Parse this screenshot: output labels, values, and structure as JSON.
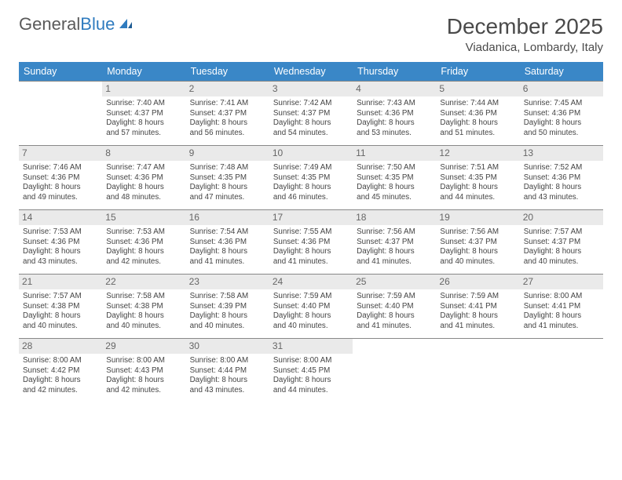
{
  "logo": {
    "text1": "General",
    "text2": "Blue",
    "accent_color": "#2f7bbf"
  },
  "header": {
    "month_title": "December 2025",
    "location": "Viadanica, Lombardy, Italy"
  },
  "colors": {
    "header_bg": "#3a87c7",
    "daynum_bg": "#eaeaea",
    "row_border": "#888888"
  },
  "day_names": [
    "Sunday",
    "Monday",
    "Tuesday",
    "Wednesday",
    "Thursday",
    "Friday",
    "Saturday"
  ],
  "weeks": [
    [
      {
        "n": "",
        "lines": []
      },
      {
        "n": "1",
        "lines": [
          "Sunrise: 7:40 AM",
          "Sunset: 4:37 PM",
          "Daylight: 8 hours",
          "and 57 minutes."
        ]
      },
      {
        "n": "2",
        "lines": [
          "Sunrise: 7:41 AM",
          "Sunset: 4:37 PM",
          "Daylight: 8 hours",
          "and 56 minutes."
        ]
      },
      {
        "n": "3",
        "lines": [
          "Sunrise: 7:42 AM",
          "Sunset: 4:37 PM",
          "Daylight: 8 hours",
          "and 54 minutes."
        ]
      },
      {
        "n": "4",
        "lines": [
          "Sunrise: 7:43 AM",
          "Sunset: 4:36 PM",
          "Daylight: 8 hours",
          "and 53 minutes."
        ]
      },
      {
        "n": "5",
        "lines": [
          "Sunrise: 7:44 AM",
          "Sunset: 4:36 PM",
          "Daylight: 8 hours",
          "and 51 minutes."
        ]
      },
      {
        "n": "6",
        "lines": [
          "Sunrise: 7:45 AM",
          "Sunset: 4:36 PM",
          "Daylight: 8 hours",
          "and 50 minutes."
        ]
      }
    ],
    [
      {
        "n": "7",
        "lines": [
          "Sunrise: 7:46 AM",
          "Sunset: 4:36 PM",
          "Daylight: 8 hours",
          "and 49 minutes."
        ]
      },
      {
        "n": "8",
        "lines": [
          "Sunrise: 7:47 AM",
          "Sunset: 4:36 PM",
          "Daylight: 8 hours",
          "and 48 minutes."
        ]
      },
      {
        "n": "9",
        "lines": [
          "Sunrise: 7:48 AM",
          "Sunset: 4:35 PM",
          "Daylight: 8 hours",
          "and 47 minutes."
        ]
      },
      {
        "n": "10",
        "lines": [
          "Sunrise: 7:49 AM",
          "Sunset: 4:35 PM",
          "Daylight: 8 hours",
          "and 46 minutes."
        ]
      },
      {
        "n": "11",
        "lines": [
          "Sunrise: 7:50 AM",
          "Sunset: 4:35 PM",
          "Daylight: 8 hours",
          "and 45 minutes."
        ]
      },
      {
        "n": "12",
        "lines": [
          "Sunrise: 7:51 AM",
          "Sunset: 4:35 PM",
          "Daylight: 8 hours",
          "and 44 minutes."
        ]
      },
      {
        "n": "13",
        "lines": [
          "Sunrise: 7:52 AM",
          "Sunset: 4:36 PM",
          "Daylight: 8 hours",
          "and 43 minutes."
        ]
      }
    ],
    [
      {
        "n": "14",
        "lines": [
          "Sunrise: 7:53 AM",
          "Sunset: 4:36 PM",
          "Daylight: 8 hours",
          "and 43 minutes."
        ]
      },
      {
        "n": "15",
        "lines": [
          "Sunrise: 7:53 AM",
          "Sunset: 4:36 PM",
          "Daylight: 8 hours",
          "and 42 minutes."
        ]
      },
      {
        "n": "16",
        "lines": [
          "Sunrise: 7:54 AM",
          "Sunset: 4:36 PM",
          "Daylight: 8 hours",
          "and 41 minutes."
        ]
      },
      {
        "n": "17",
        "lines": [
          "Sunrise: 7:55 AM",
          "Sunset: 4:36 PM",
          "Daylight: 8 hours",
          "and 41 minutes."
        ]
      },
      {
        "n": "18",
        "lines": [
          "Sunrise: 7:56 AM",
          "Sunset: 4:37 PM",
          "Daylight: 8 hours",
          "and 41 minutes."
        ]
      },
      {
        "n": "19",
        "lines": [
          "Sunrise: 7:56 AM",
          "Sunset: 4:37 PM",
          "Daylight: 8 hours",
          "and 40 minutes."
        ]
      },
      {
        "n": "20",
        "lines": [
          "Sunrise: 7:57 AM",
          "Sunset: 4:37 PM",
          "Daylight: 8 hours",
          "and 40 minutes."
        ]
      }
    ],
    [
      {
        "n": "21",
        "lines": [
          "Sunrise: 7:57 AM",
          "Sunset: 4:38 PM",
          "Daylight: 8 hours",
          "and 40 minutes."
        ]
      },
      {
        "n": "22",
        "lines": [
          "Sunrise: 7:58 AM",
          "Sunset: 4:38 PM",
          "Daylight: 8 hours",
          "and 40 minutes."
        ]
      },
      {
        "n": "23",
        "lines": [
          "Sunrise: 7:58 AM",
          "Sunset: 4:39 PM",
          "Daylight: 8 hours",
          "and 40 minutes."
        ]
      },
      {
        "n": "24",
        "lines": [
          "Sunrise: 7:59 AM",
          "Sunset: 4:40 PM",
          "Daylight: 8 hours",
          "and 40 minutes."
        ]
      },
      {
        "n": "25",
        "lines": [
          "Sunrise: 7:59 AM",
          "Sunset: 4:40 PM",
          "Daylight: 8 hours",
          "and 41 minutes."
        ]
      },
      {
        "n": "26",
        "lines": [
          "Sunrise: 7:59 AM",
          "Sunset: 4:41 PM",
          "Daylight: 8 hours",
          "and 41 minutes."
        ]
      },
      {
        "n": "27",
        "lines": [
          "Sunrise: 8:00 AM",
          "Sunset: 4:41 PM",
          "Daylight: 8 hours",
          "and 41 minutes."
        ]
      }
    ],
    [
      {
        "n": "28",
        "lines": [
          "Sunrise: 8:00 AM",
          "Sunset: 4:42 PM",
          "Daylight: 8 hours",
          "and 42 minutes."
        ]
      },
      {
        "n": "29",
        "lines": [
          "Sunrise: 8:00 AM",
          "Sunset: 4:43 PM",
          "Daylight: 8 hours",
          "and 42 minutes."
        ]
      },
      {
        "n": "30",
        "lines": [
          "Sunrise: 8:00 AM",
          "Sunset: 4:44 PM",
          "Daylight: 8 hours",
          "and 43 minutes."
        ]
      },
      {
        "n": "31",
        "lines": [
          "Sunrise: 8:00 AM",
          "Sunset: 4:45 PM",
          "Daylight: 8 hours",
          "and 44 minutes."
        ]
      },
      {
        "n": "",
        "lines": []
      },
      {
        "n": "",
        "lines": []
      },
      {
        "n": "",
        "lines": []
      }
    ]
  ]
}
